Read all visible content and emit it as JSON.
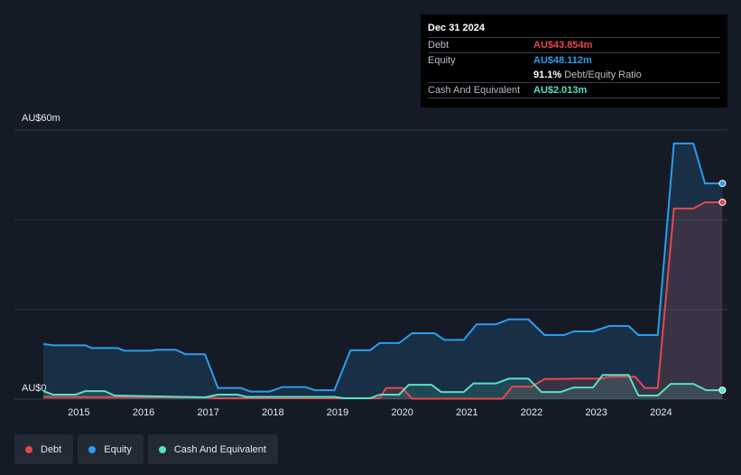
{
  "tooltip": {
    "date": "Dec 31 2024",
    "rows": [
      {
        "label": "Debt",
        "value": "AU$43.854m",
        "color": "#e5484d"
      },
      {
        "label": "Equity",
        "value": "AU$48.112m",
        "color": "#2d9cec"
      },
      {
        "ratio_value": "91.1%",
        "ratio_label": "Debt/Equity Ratio"
      },
      {
        "label": "Cash And Equivalent",
        "value": "AU$2.013m",
        "color": "#59e0c5"
      }
    ]
  },
  "chart_data": {
    "type": "area",
    "y_max_label": "AU$60m",
    "y_min_label": "AU$0",
    "ylim": [
      0,
      60
    ],
    "xlim": [
      2014.45,
      2025.0
    ],
    "x_ticks": [
      "2015",
      "2016",
      "2017",
      "2018",
      "2019",
      "2020",
      "2021",
      "2022",
      "2023",
      "2024"
    ],
    "grid": true,
    "series": [
      {
        "name": "Equity",
        "color": "#2d9cec",
        "points": [
          [
            2014.45,
            12.3
          ],
          [
            2014.6,
            12.0
          ],
          [
            2015.1,
            12.0
          ],
          [
            2015.2,
            11.4
          ],
          [
            2015.6,
            11.4
          ],
          [
            2015.7,
            10.8
          ],
          [
            2016.1,
            10.8
          ],
          [
            2016.2,
            11.0
          ],
          [
            2016.5,
            11.0
          ],
          [
            2016.65,
            10.0
          ],
          [
            2016.95,
            10.0
          ],
          [
            2017.15,
            2.5
          ],
          [
            2017.5,
            2.5
          ],
          [
            2017.65,
            1.7
          ],
          [
            2017.95,
            1.7
          ],
          [
            2018.15,
            2.7
          ],
          [
            2018.5,
            2.7
          ],
          [
            2018.65,
            2.0
          ],
          [
            2018.95,
            2.0
          ],
          [
            2019.2,
            10.9
          ],
          [
            2019.5,
            10.9
          ],
          [
            2019.65,
            12.5
          ],
          [
            2019.95,
            12.5
          ],
          [
            2020.15,
            14.7
          ],
          [
            2020.5,
            14.7
          ],
          [
            2020.65,
            13.2
          ],
          [
            2020.95,
            13.2
          ],
          [
            2021.15,
            16.7
          ],
          [
            2021.45,
            16.7
          ],
          [
            2021.65,
            17.8
          ],
          [
            2021.95,
            17.8
          ],
          [
            2022.2,
            14.3
          ],
          [
            2022.5,
            14.3
          ],
          [
            2022.65,
            15.1
          ],
          [
            2022.95,
            15.1
          ],
          [
            2023.2,
            16.3
          ],
          [
            2023.5,
            16.3
          ],
          [
            2023.65,
            14.3
          ],
          [
            2023.95,
            14.3
          ],
          [
            2024.2,
            57.0
          ],
          [
            2024.5,
            57.0
          ],
          [
            2024.68,
            48.1
          ],
          [
            2024.95,
            48.1
          ]
        ]
      },
      {
        "name": "Debt",
        "color": "#e5484d",
        "points": [
          [
            2014.45,
            0.5
          ],
          [
            2016.95,
            0.4
          ],
          [
            2017.15,
            0.2
          ],
          [
            2019.4,
            0.2
          ],
          [
            2019.65,
            0.2
          ],
          [
            2019.75,
            2.5
          ],
          [
            2020.0,
            2.5
          ],
          [
            2020.15,
            0.1
          ],
          [
            2021.55,
            0.1
          ],
          [
            2021.7,
            2.8
          ],
          [
            2022.0,
            2.8
          ],
          [
            2022.2,
            4.5
          ],
          [
            2022.5,
            4.5
          ],
          [
            2022.65,
            4.6
          ],
          [
            2023.1,
            4.6
          ],
          [
            2023.2,
            5.0
          ],
          [
            2023.6,
            5.0
          ],
          [
            2023.75,
            2.5
          ],
          [
            2023.95,
            2.5
          ],
          [
            2024.2,
            42.5
          ],
          [
            2024.5,
            42.5
          ],
          [
            2024.68,
            43.9
          ],
          [
            2024.95,
            43.9
          ]
        ]
      },
      {
        "name": "Cash And Equivalent",
        "color": "#59e0c5",
        "points": [
          [
            2014.45,
            1.8
          ],
          [
            2014.6,
            1.0
          ],
          [
            2014.95,
            1.0
          ],
          [
            2015.1,
            1.8
          ],
          [
            2015.4,
            1.8
          ],
          [
            2015.55,
            0.8
          ],
          [
            2016.95,
            0.4
          ],
          [
            2017.15,
            1.0
          ],
          [
            2017.45,
            1.0
          ],
          [
            2017.6,
            0.5
          ],
          [
            2018.95,
            0.5
          ],
          [
            2019.1,
            0.2
          ],
          [
            2019.5,
            0.2
          ],
          [
            2019.65,
            1.0
          ],
          [
            2019.95,
            1.0
          ],
          [
            2020.1,
            3.2
          ],
          [
            2020.45,
            3.2
          ],
          [
            2020.6,
            1.6
          ],
          [
            2020.95,
            1.6
          ],
          [
            2021.1,
            3.5
          ],
          [
            2021.45,
            3.5
          ],
          [
            2021.65,
            4.6
          ],
          [
            2021.95,
            4.6
          ],
          [
            2022.15,
            1.6
          ],
          [
            2022.45,
            1.6
          ],
          [
            2022.65,
            2.6
          ],
          [
            2022.95,
            2.6
          ],
          [
            2023.1,
            5.4
          ],
          [
            2023.5,
            5.4
          ],
          [
            2023.65,
            0.8
          ],
          [
            2023.95,
            0.8
          ],
          [
            2024.15,
            3.4
          ],
          [
            2024.5,
            3.4
          ],
          [
            2024.7,
            2.0
          ],
          [
            2024.95,
            2.0
          ]
        ]
      }
    ]
  }
}
